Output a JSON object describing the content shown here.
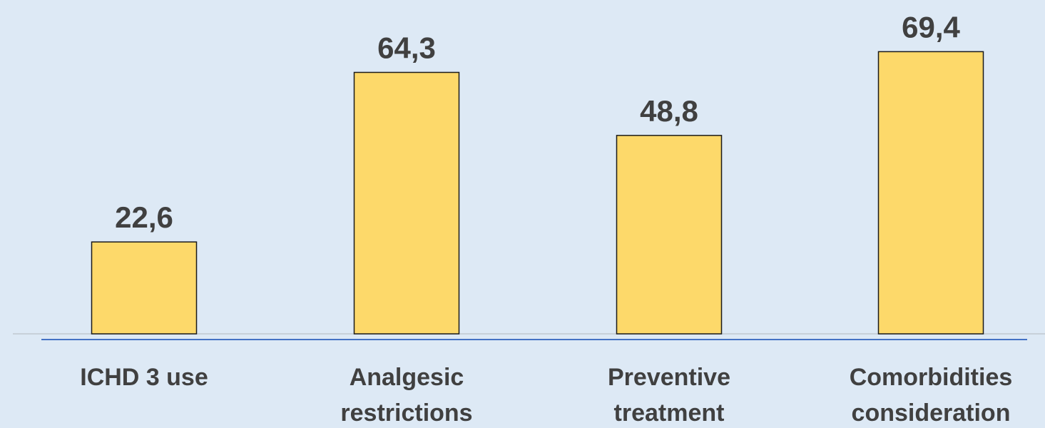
{
  "chart_data": {
    "type": "bar",
    "categories": [
      [
        "ICHD 3 use"
      ],
      [
        "Analgesic",
        "restrictions"
      ],
      [
        "Preventive",
        "treatment"
      ],
      [
        "Comorbidities",
        "consideration"
      ]
    ],
    "values": [
      22.6,
      64.3,
      48.8,
      69.4
    ],
    "value_labels": [
      "22,6",
      "64,3",
      "48,8",
      "69,4"
    ],
    "title": "",
    "xlabel": "",
    "ylabel": "",
    "ylim": [
      0,
      70
    ],
    "grid": false,
    "colors": {
      "bar_fill": "#fdd96a",
      "bar_stroke": "#1a1a1a",
      "axis_line": "#4472c4",
      "baseline": "#c0c8d0",
      "text": "#404040",
      "background": "#dde9f5"
    }
  }
}
